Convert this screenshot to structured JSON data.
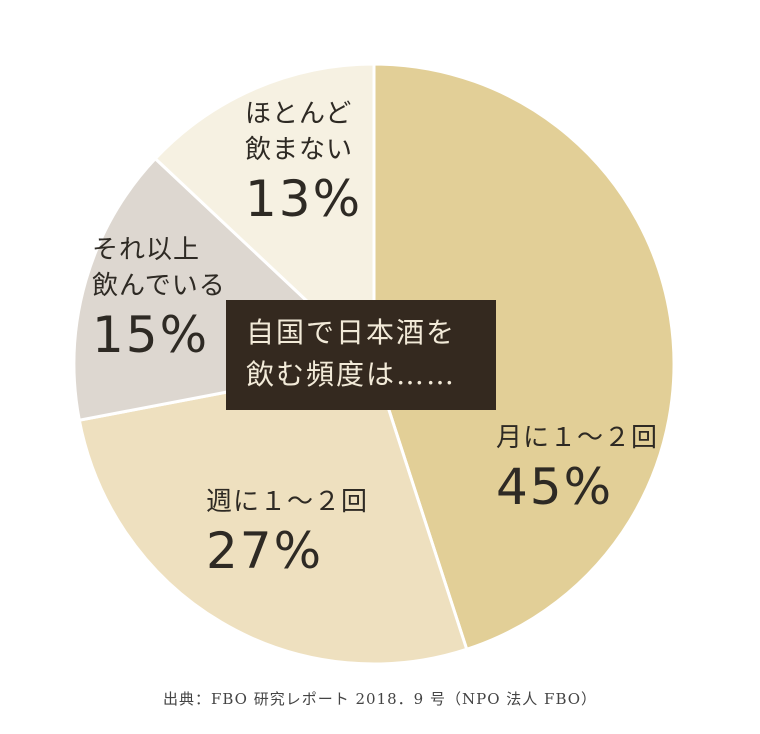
{
  "chart_data": {
    "type": "pie",
    "title_lines": [
      "自国で日本酒を",
      "飲む頻度は……"
    ],
    "slices": [
      {
        "label_lines": [
          "月に１～２回"
        ],
        "value": 45,
        "value_text": "45%",
        "color": "#e2cf97"
      },
      {
        "label_lines": [
          "週に１～２回"
        ],
        "value": 27,
        "value_text": "27%",
        "color": "#eee0bf"
      },
      {
        "label_lines": [
          "それ以上",
          "飲んでいる"
        ],
        "value": 15,
        "value_text": "15%",
        "color": "#ddd7d0"
      },
      {
        "label_lines": [
          "ほとんど",
          "飲まない"
        ],
        "value": 13,
        "value_text": "13%",
        "color": "#f6f1e2"
      }
    ],
    "source": "出典：FBO 研究レポート 2018．9 号（NPO 法人 FBO）"
  }
}
